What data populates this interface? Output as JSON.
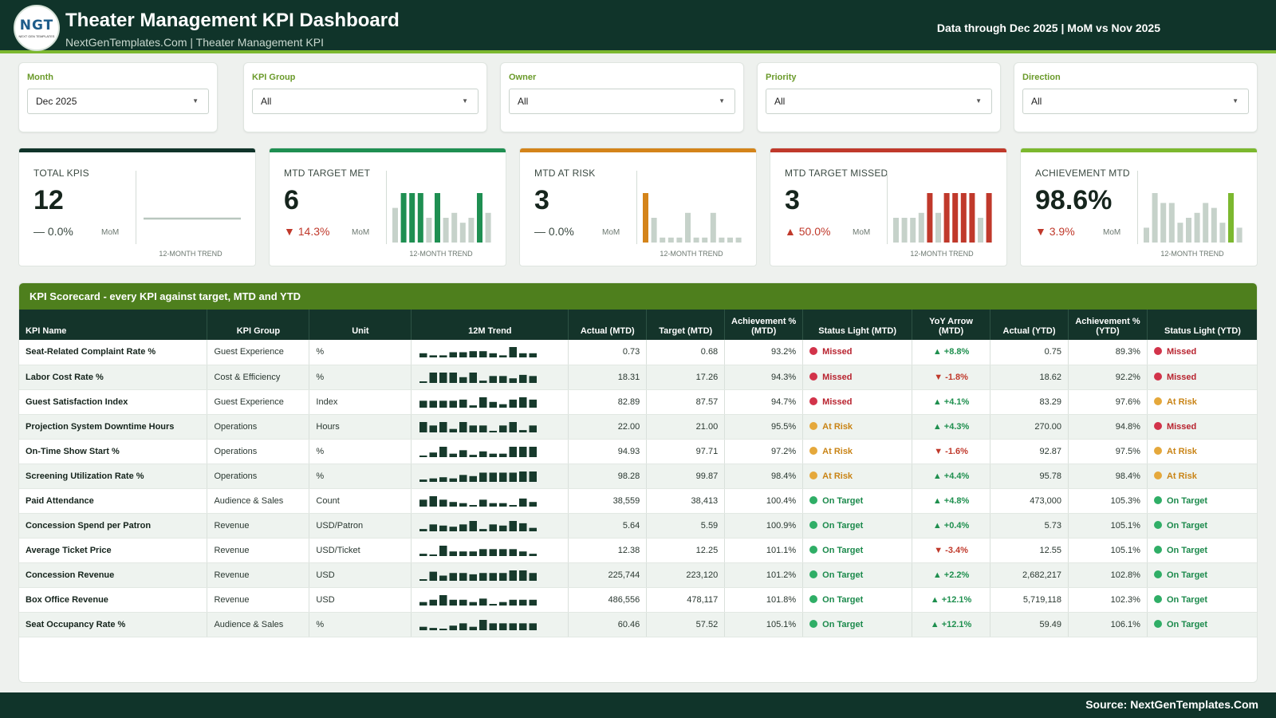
{
  "header": {
    "logo_text": "NGT",
    "logo_sub": "NEXT GEN TEMPLATES",
    "title": "Theater Management KPI Dashboard",
    "subtitle": "NextGenTemplates.Com | Theater Management KPI",
    "data_note": "Data through Dec 2025 | MoM vs Nov 2025"
  },
  "filters": [
    {
      "label": "Month",
      "value": "Dec 2025"
    },
    {
      "label": "KPI Group",
      "value": "All"
    },
    {
      "label": "Owner",
      "value": "All"
    },
    {
      "label": "Priority",
      "value": "All"
    },
    {
      "label": "Direction",
      "value": "All"
    }
  ],
  "kpis": [
    {
      "label": "TOTAL KPIS",
      "value": "12",
      "delta": "0.0%",
      "delta_dir": "flat",
      "mom": "MoM",
      "trend_label": "12-MONTH TREND",
      "bar_color": "#10342a",
      "spark_type": "line",
      "spark": [
        12,
        12,
        12,
        12,
        12,
        12,
        12,
        12,
        12,
        12,
        12,
        12
      ],
      "spark_highlight": [],
      "spark_color": "#b9c7bf"
    },
    {
      "label": "MTD TARGET MET",
      "value": "6",
      "delta": "14.3%",
      "delta_dir": "down",
      "mom": "MoM",
      "trend_label": "12-MONTH TREND",
      "bar_color": "#1f8f52",
      "spark_type": "bar",
      "spark": [
        7,
        10,
        10,
        10,
        5,
        10,
        5,
        6,
        4,
        5,
        10,
        6
      ],
      "spark_highlight": [
        1,
        2,
        3,
        5,
        10
      ],
      "spark_color": "#1f8f52"
    },
    {
      "label": "MTD AT RISK",
      "value": "3",
      "delta": "0.0%",
      "delta_dir": "flat",
      "mom": "MoM",
      "trend_label": "12-MONTH TREND",
      "bar_color": "#d4841a",
      "spark_type": "bar",
      "spark": [
        10,
        5,
        1,
        1,
        1,
        6,
        1,
        1,
        6,
        1,
        1,
        1
      ],
      "spark_highlight": [
        0
      ],
      "spark_color": "#d4841a"
    },
    {
      "label": "MTD TARGET MISSED",
      "value": "3",
      "delta": "50.0%",
      "delta_dir": "up",
      "mom": "MoM",
      "trend_label": "12-MONTH TREND",
      "bar_color": "#c0392b",
      "spark_type": "bar",
      "spark": [
        5,
        5,
        5,
        6,
        10,
        6,
        10,
        10,
        10,
        10,
        5,
        10
      ],
      "spark_highlight": [
        4,
        6,
        7,
        8,
        9,
        11
      ],
      "spark_color": "#c0392b"
    },
    {
      "label": "ACHIEVEMENT MTD",
      "value": "98.6%",
      "delta": "3.9%",
      "delta_dir": "down",
      "mom": "MoM",
      "trend_label": "12-MONTH TREND",
      "bar_color": "#7cb82f",
      "spark_type": "bar",
      "spark": [
        3,
        10,
        8,
        8,
        4,
        5,
        6,
        8,
        7,
        4,
        10,
        3
      ],
      "spark_highlight": [
        10
      ],
      "spark_color": "#7cb82f"
    }
  ],
  "scorecard": {
    "title": "KPI Scorecard - every KPI against target, MTD and YTD",
    "columns": [
      "KPI Name",
      "KPI Group",
      "Unit",
      "12M Trend",
      "Actual (MTD)",
      "Target (MTD)",
      "Achievement % (MTD)",
      "Status Light (MTD)",
      "YoY Arrow (MTD)",
      "Actual (YTD)",
      "Achievement % (YTD)",
      "Status Light (YTD)"
    ],
    "status_colors": {
      "Missed": "#d2334a",
      "At Risk": "#e5a83b",
      "On Target": "#2fae66"
    },
    "status_text_colors": {
      "Missed": "#b8232f",
      "At Risk": "#c98416",
      "On Target": "#1c8a4c"
    },
    "rows": [
      {
        "name": "Seat-Related Complaint Rate %",
        "group": "Guest Experience",
        "unit": "%",
        "trend": [
          4,
          2,
          2,
          5,
          5,
          6,
          6,
          4,
          2,
          10,
          4,
          4
        ],
        "actual_mtd": "0.73",
        "target_mtd": "0.68",
        "ach_mtd": "93.2%",
        "status_mtd": "Missed",
        "yoy": "+8.8%",
        "yoy_dir": "up",
        "actual_ytd": "0.75",
        "ach_ytd": "89.3%",
        "status_ytd": "Missed"
      },
      {
        "name": "Labor Cost Rate %",
        "group": "Cost & Efficiency",
        "unit": "%",
        "trend": [
          1,
          9,
          9,
          9,
          5,
          9,
          2,
          6,
          6,
          4,
          7,
          6
        ],
        "actual_mtd": "18.31",
        "target_mtd": "17.26",
        "ach_mtd": "94.3%",
        "status_mtd": "Missed",
        "yoy": "-1.8%",
        "yoy_dir": "down",
        "actual_ytd": "18.62",
        "ach_ytd": "92.2%",
        "status_ytd": "Missed"
      },
      {
        "name": "Guest Satisfaction Index",
        "group": "Guest Experience",
        "unit": "Index",
        "trend": [
          6,
          6,
          6,
          6,
          7,
          2,
          9,
          5,
          3,
          7,
          9,
          7
        ],
        "actual_mtd": "82.89",
        "target_mtd": "87.57",
        "ach_mtd": "94.7%",
        "status_mtd": "Missed",
        "yoy": "+4.1%",
        "yoy_dir": "up",
        "actual_ytd": "83.29",
        "ach_ytd": "97.6%",
        "status_ytd": "At Risk"
      },
      {
        "name": "Projection System Downtime Hours",
        "group": "Operations",
        "unit": "Hours",
        "trend": [
          9,
          6,
          9,
          3,
          9,
          6,
          6,
          1,
          6,
          9,
          2,
          6
        ],
        "actual_mtd": "22.00",
        "target_mtd": "21.00",
        "ach_mtd": "95.5%",
        "status_mtd": "At Risk",
        "yoy": "+4.3%",
        "yoy_dir": "up",
        "actual_ytd": "270.00",
        "ach_ytd": "94.8%",
        "status_ytd": "Missed"
      },
      {
        "name": "On-Time Show Start %",
        "group": "Operations",
        "unit": "%",
        "trend": [
          1,
          4,
          9,
          3,
          6,
          2,
          5,
          3,
          3,
          9,
          9,
          9
        ],
        "actual_mtd": "94.93",
        "target_mtd": "97.71",
        "ach_mtd": "97.2%",
        "status_mtd": "At Risk",
        "yoy": "-1.6%",
        "yoy_dir": "down",
        "actual_ytd": "92.87",
        "ach_ytd": "97.5%",
        "status_ytd": "At Risk"
      },
      {
        "name": "Screening Utilization Rate %",
        "group": "Operations",
        "unit": "%",
        "trend": [
          2,
          3,
          4,
          3,
          6,
          5,
          8,
          8,
          8,
          8,
          9,
          9
        ],
        "actual_mtd": "98.28",
        "target_mtd": "99.87",
        "ach_mtd": "98.4%",
        "status_mtd": "At Risk",
        "yoy": "+4.4%",
        "yoy_dir": "up",
        "actual_ytd": "95.78",
        "ach_ytd": "98.4%",
        "status_ytd": "At Risk"
      },
      {
        "name": "Paid Attendance",
        "group": "Audience & Sales",
        "unit": "Count",
        "trend": [
          6,
          9,
          6,
          4,
          3,
          1,
          6,
          3,
          3,
          1,
          7,
          4
        ],
        "actual_mtd": "38,559",
        "target_mtd": "38,413",
        "ach_mtd": "100.4%",
        "status_mtd": "On Target",
        "yoy": "+4.8%",
        "yoy_dir": "up",
        "actual_ytd": "473,000",
        "ach_ytd": "105.3%",
        "status_ytd": "On Target"
      },
      {
        "name": "Concession Spend per Patron",
        "group": "Revenue",
        "unit": "USD/Patron",
        "trend": [
          2,
          6,
          5,
          4,
          6,
          9,
          2,
          6,
          5,
          9,
          7,
          3
        ],
        "actual_mtd": "5.64",
        "target_mtd": "5.59",
        "ach_mtd": "100.9%",
        "status_mtd": "On Target",
        "yoy": "+0.4%",
        "yoy_dir": "up",
        "actual_ytd": "5.73",
        "ach_ytd": "105.1%",
        "status_ytd": "On Target"
      },
      {
        "name": "Average Ticket Price",
        "group": "Revenue",
        "unit": "USD/Ticket",
        "trend": [
          2,
          1,
          9,
          4,
          4,
          4,
          6,
          6,
          6,
          6,
          4,
          2
        ],
        "actual_mtd": "12.38",
        "target_mtd": "12.25",
        "ach_mtd": "101.1%",
        "status_mtd": "On Target",
        "yoy": "-3.4%",
        "yoy_dir": "down",
        "actual_ytd": "12.55",
        "ach_ytd": "105.1%",
        "status_ytd": "On Target"
      },
      {
        "name": "Concession Revenue",
        "group": "Revenue",
        "unit": "USD",
        "trend": [
          1,
          7,
          4,
          6,
          6,
          5,
          6,
          6,
          6,
          8,
          8,
          6
        ],
        "actual_mtd": "225,744",
        "target_mtd": "223,120",
        "ach_mtd": "101.2%",
        "status_mtd": "On Target",
        "yoy": "+2.2%",
        "yoy_dir": "up",
        "actual_ytd": "2,682,217",
        "ach_ytd": "102.8%",
        "status_ytd": "On Target"
      },
      {
        "name": "Box Office Revenue",
        "group": "Revenue",
        "unit": "USD",
        "trend": [
          3,
          5,
          9,
          5,
          5,
          3,
          6,
          1,
          3,
          5,
          5,
          5
        ],
        "actual_mtd": "486,556",
        "target_mtd": "478,117",
        "ach_mtd": "101.8%",
        "status_mtd": "On Target",
        "yoy": "+12.1%",
        "yoy_dir": "up",
        "actual_ytd": "5,719,118",
        "ach_ytd": "102.3%",
        "status_ytd": "On Target"
      },
      {
        "name": "Seat Occupancy Rate %",
        "group": "Audience & Sales",
        "unit": "%",
        "trend": [
          3,
          2,
          1,
          4,
          6,
          3,
          9,
          6,
          6,
          6,
          6,
          6
        ],
        "actual_mtd": "60.46",
        "target_mtd": "57.52",
        "ach_mtd": "105.1%",
        "status_mtd": "On Target",
        "yoy": "+12.1%",
        "yoy_dir": "up",
        "actual_ytd": "59.49",
        "ach_ytd": "106.1%",
        "status_ytd": "On Target"
      }
    ]
  },
  "footer": {
    "source": "Source: NextGenTemplates.Com"
  }
}
